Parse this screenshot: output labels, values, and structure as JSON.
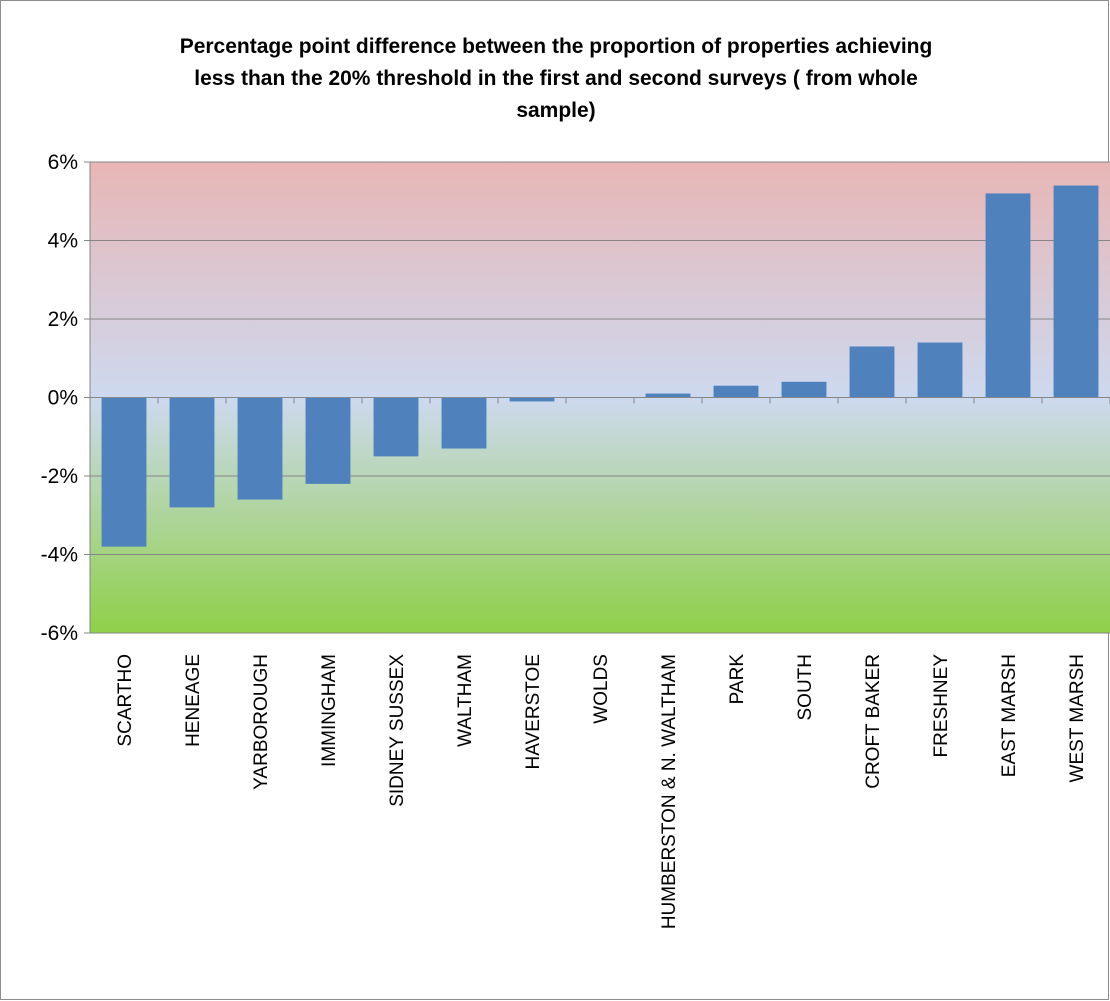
{
  "chart_data": {
    "type": "bar",
    "title": "Percentage point difference between the proportion of properties  achieving less than the 20% threshold in the first  and second surveys ( from whole sample)",
    "title_lines": [
      "Percentage point difference between the proportion of properties  achieving",
      "less than the 20% threshold in the first  and second surveys ( from whole",
      "sample)"
    ],
    "xlabel": "",
    "ylabel": "",
    "ylim": [
      -6,
      6
    ],
    "y_unit": "%",
    "y_ticks": [
      "6%",
      "4%",
      "2%",
      "0%",
      "-2%",
      "-4%",
      "-6%"
    ],
    "y_tick_values": [
      6,
      4,
      2,
      0,
      -2,
      -4,
      -6
    ],
    "grid": true,
    "legend": "none",
    "background": "gradient red (top) to blue (zero) to green (bottom)",
    "bar_color": "#4f81bd",
    "categories": [
      "SCARTHO",
      "HENEAGE",
      "YARBOROUGH",
      "IMMINGHAM",
      "SIDNEY SUSSEX",
      "WALTHAM",
      "HAVERSTOE",
      "WOLDS",
      "HUMBERSTON & N. WALTHAM",
      "PARK",
      "SOUTH",
      "CROFT BAKER",
      "FRESHNEY",
      "EAST MARSH",
      "WEST MARSH"
    ],
    "values": [
      -3.8,
      -2.8,
      -2.6,
      -2.2,
      -1.5,
      -1.3,
      -0.1,
      0.0,
      0.1,
      0.3,
      0.4,
      1.3,
      1.4,
      5.2,
      5.4
    ]
  }
}
